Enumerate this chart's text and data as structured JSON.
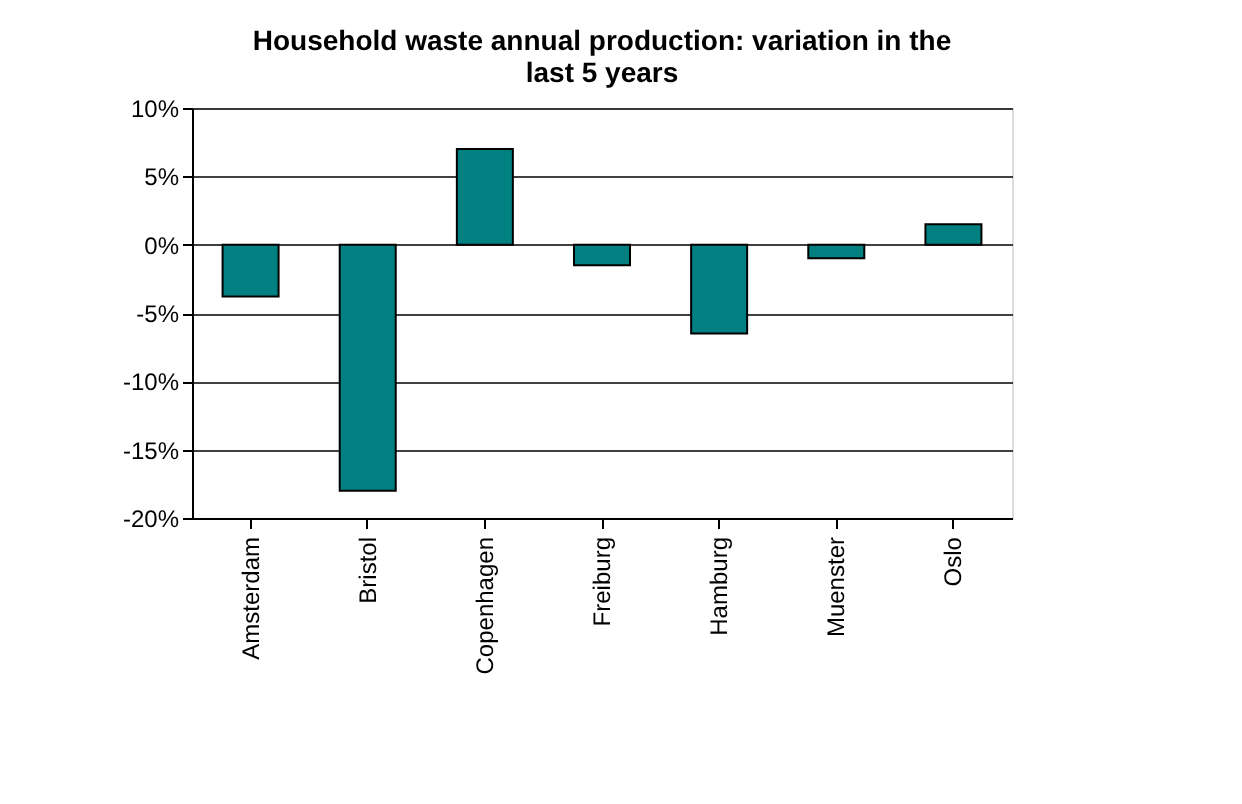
{
  "chart_data": {
    "type": "bar",
    "title": "Household waste annual production: variation in the last 5 years",
    "categories": [
      "Amsterdam",
      "Bristol",
      "Copenhagen",
      "Freiburg",
      "Hamburg",
      "Muenster",
      "Oslo"
    ],
    "values": [
      -3.8,
      -18,
      7,
      -1.5,
      -6.5,
      -1,
      1.5
    ],
    "color": "#008080",
    "ylim": [
      -20,
      10
    ],
    "yticks": [
      {
        "value": -20,
        "label": "-20%"
      },
      {
        "value": -15,
        "label": "-15%"
      },
      {
        "value": -10,
        "label": "-10%"
      },
      {
        "value": -5,
        "label": "-5%"
      },
      {
        "value": 0,
        "label": "0%"
      },
      {
        "value": 5,
        "label": "5%"
      },
      {
        "value": 10,
        "label": "10%"
      }
    ],
    "grid": "y"
  }
}
